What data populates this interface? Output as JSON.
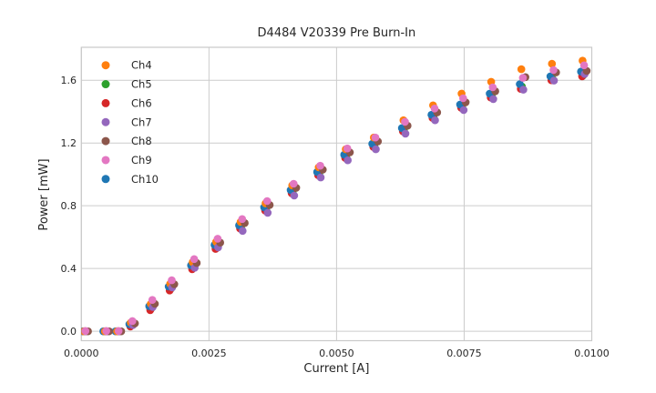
{
  "figure": {
    "background": "#ffffff",
    "text_color": "#262626",
    "grid_color": "#cccccc",
    "spine_color": "#c9c9c9"
  },
  "chart_data": {
    "type": "scatter",
    "title": "D4484 V20339 Pre Burn-In",
    "xlabel": "Current [A]",
    "ylabel": "Power [mW]",
    "xlim": [
      0.0,
      0.01
    ],
    "ylim": [
      -0.06,
      1.81
    ],
    "grid": true,
    "legend_position": "upper left",
    "xticks": [
      0.0,
      0.0025,
      0.005,
      0.0075,
      0.01
    ],
    "xtick_labels": [
      "0.0000",
      "0.0025",
      "0.0050",
      "0.0075",
      "0.0100"
    ],
    "yticks": [
      0.0,
      0.4,
      0.8,
      1.2,
      1.6
    ],
    "ytick_labels": [
      "0.0",
      "0.4",
      "0.8",
      "1.2",
      "1.6"
    ],
    "x": [
      8e-05,
      0.00049,
      0.00073,
      0.001,
      0.00139,
      0.00177,
      0.00221,
      0.00267,
      0.00315,
      0.00364,
      0.00416,
      0.00468,
      0.00521,
      0.00576,
      0.00634,
      0.00692,
      0.00748,
      0.00806,
      0.00865,
      0.00925,
      0.00985
    ],
    "series": [
      {
        "name": "Ch4",
        "color": "#ff7f0e",
        "dx": -3e-05,
        "values": [
          0,
          0,
          0,
          0.055,
          0.175,
          0.303,
          0.44,
          0.57,
          0.697,
          0.815,
          0.93,
          1.045,
          1.16,
          1.235,
          1.345,
          1.44,
          1.515,
          1.59,
          1.67,
          1.705,
          1.725
        ]
      },
      {
        "name": "Ch5",
        "color": "#2ca02c",
        "dx": -2e-05,
        "values": [
          0,
          0,
          0,
          0.04,
          0.145,
          0.27,
          0.405,
          0.535,
          0.66,
          0.775,
          0.885,
          1.0,
          1.11,
          1.18,
          1.28,
          1.365,
          1.43,
          1.5,
          1.56,
          1.61,
          1.63
        ]
      },
      {
        "name": "Ch6",
        "color": "#d62728",
        "dx": -4e-05,
        "values": [
          0,
          0,
          0,
          0.03,
          0.135,
          0.26,
          0.395,
          0.525,
          0.655,
          0.77,
          0.88,
          0.995,
          1.105,
          1.175,
          1.275,
          1.36,
          1.425,
          1.49,
          1.545,
          1.6,
          1.625
        ]
      },
      {
        "name": "Ch7",
        "color": "#9467bd",
        "dx": 1e-05,
        "values": [
          0,
          0,
          0,
          0.04,
          0.155,
          0.28,
          0.405,
          0.535,
          0.64,
          0.755,
          0.865,
          0.98,
          1.09,
          1.16,
          1.26,
          1.345,
          1.41,
          1.48,
          1.54,
          1.598,
          1.64
        ]
      },
      {
        "name": "Ch8",
        "color": "#8c564b",
        "dx": 5e-05,
        "values": [
          0,
          0,
          0,
          0.05,
          0.175,
          0.3,
          0.435,
          0.565,
          0.69,
          0.805,
          0.915,
          1.03,
          1.14,
          1.21,
          1.31,
          1.395,
          1.46,
          1.53,
          1.62,
          1.65,
          1.66
        ]
      },
      {
        "name": "Ch9",
        "color": "#e377c2",
        "dx": 0.0,
        "values": [
          0.002,
          0.002,
          0.002,
          0.065,
          0.2,
          0.325,
          0.46,
          0.59,
          0.715,
          0.83,
          0.94,
          1.055,
          1.165,
          1.235,
          1.335,
          1.42,
          1.485,
          1.555,
          1.615,
          1.665,
          1.695
        ]
      },
      {
        "name": "Ch10",
        "color": "#1f77b4",
        "dx": -6e-05,
        "values": [
          0,
          0,
          0,
          0.045,
          0.16,
          0.285,
          0.42,
          0.55,
          0.675,
          0.79,
          0.9,
          1.015,
          1.125,
          1.195,
          1.295,
          1.38,
          1.445,
          1.515,
          1.575,
          1.625,
          1.655
        ]
      }
    ],
    "draw_order": [
      "Ch5",
      "Ch6",
      "Ch10",
      "Ch4",
      "Ch7",
      "Ch8",
      "Ch9"
    ],
    "legend": [
      {
        "label": "Ch4",
        "color": "#ff7f0e"
      },
      {
        "label": "Ch5",
        "color": "#2ca02c"
      },
      {
        "label": "Ch6",
        "color": "#d62728"
      },
      {
        "label": "Ch7",
        "color": "#9467bd"
      },
      {
        "label": "Ch8",
        "color": "#8c564b"
      },
      {
        "label": "Ch9",
        "color": "#e377c2"
      },
      {
        "label": "Ch10",
        "color": "#1f77b4"
      }
    ]
  }
}
